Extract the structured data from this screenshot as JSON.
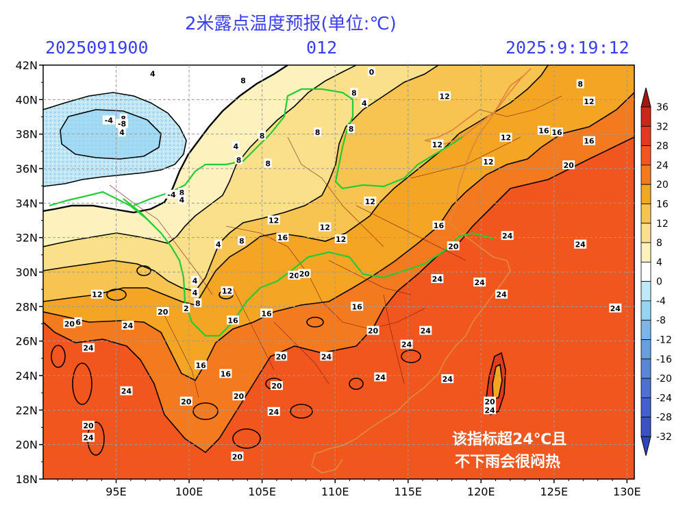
{
  "header": {
    "title": "2米露点温度预报(单位:℃)",
    "run_time": "2025091900",
    "lead_hours": "012",
    "valid_time": "2025:9:19:12"
  },
  "axes": {
    "lat_labels": [
      "42N",
      "40N",
      "38N",
      "36N",
      "34N",
      "32N",
      "30N",
      "28N",
      "26N",
      "24N",
      "22N",
      "20N",
      "18N"
    ],
    "lon_labels": [
      "95E",
      "100E",
      "105E",
      "110E",
      "115E",
      "120E",
      "125E",
      "130E"
    ]
  },
  "colorbar": {
    "ticks": [
      "36",
      "32",
      "28",
      "24",
      "20",
      "16",
      "12",
      "8",
      "4",
      "0",
      "-4",
      "-8",
      "-12",
      "-16",
      "-20",
      "-24",
      "-28",
      "-32"
    ],
    "colors": [
      "#c7281a",
      "#e23a1e",
      "#f0561e",
      "#f47a20",
      "#f5a524",
      "#f7c451",
      "#fbe08c",
      "#fdf1bd",
      "#ffffff",
      "#bfe9f7",
      "#96d4f2",
      "#7ab6ea",
      "#6a9ee2",
      "#5c86da",
      "#4e70d2",
      "#4460cc",
      "#3a52c4"
    ]
  },
  "contour_labels": [
    {
      "text": "4",
      "lon": 97.5,
      "lat": 41.5
    },
    {
      "text": "8",
      "lon": 103.7,
      "lat": 41.1
    },
    {
      "text": "0",
      "lon": 112.5,
      "lat": 41.6
    },
    {
      "text": "8",
      "lon": 111.3,
      "lat": 40.4
    },
    {
      "text": "4",
      "lon": 112.0,
      "lat": 39.8
    },
    {
      "text": "12",
      "lon": 117.5,
      "lat": 40.2
    },
    {
      "text": "8",
      "lon": 126.8,
      "lat": 40.9
    },
    {
      "text": "12",
      "lon": 127.4,
      "lat": 39.9
    },
    {
      "text": "8",
      "lon": 95.5,
      "lat": 38.9
    },
    {
      "text": "-4",
      "lon": 94.5,
      "lat": 38.8
    },
    {
      "text": "-8",
      "lon": 95.4,
      "lat": 38.6
    },
    {
      "text": "4",
      "lon": 95.4,
      "lat": 38.1
    },
    {
      "text": "8",
      "lon": 105.0,
      "lat": 37.9
    },
    {
      "text": "8",
      "lon": 108.8,
      "lat": 38.1
    },
    {
      "text": "8",
      "lon": 111.1,
      "lat": 38.3
    },
    {
      "text": "4",
      "lon": 103.2,
      "lat": 37.3
    },
    {
      "text": "12",
      "lon": 117.0,
      "lat": 37.4
    },
    {
      "text": "12",
      "lon": 121.7,
      "lat": 37.8
    },
    {
      "text": "16",
      "lon": 124.3,
      "lat": 38.2
    },
    {
      "text": "16",
      "lon": 125.2,
      "lat": 38.1
    },
    {
      "text": "16",
      "lon": 127.4,
      "lat": 37.6
    },
    {
      "text": "8",
      "lon": 103.4,
      "lat": 36.5
    },
    {
      "text": "8",
      "lon": 105.4,
      "lat": 36.3
    },
    {
      "text": "12",
      "lon": 120.5,
      "lat": 36.4
    },
    {
      "text": "20",
      "lon": 126.0,
      "lat": 36.2
    },
    {
      "text": "12",
      "lon": 112.4,
      "lat": 34.1
    },
    {
      "text": "8",
      "lon": 99.5,
      "lat": 34.6
    },
    {
      "text": "4",
      "lon": 99.5,
      "lat": 34.2
    },
    {
      "text": "-4",
      "lon": 98.8,
      "lat": 34.5
    },
    {
      "text": "12",
      "lon": 105.8,
      "lat": 33.0
    },
    {
      "text": "12",
      "lon": 109.3,
      "lat": 32.6
    },
    {
      "text": "16",
      "lon": 117.1,
      "lat": 32.7
    },
    {
      "text": "16",
      "lon": 106.4,
      "lat": 32.0
    },
    {
      "text": "12",
      "lon": 110.4,
      "lat": 31.9
    },
    {
      "text": "24",
      "lon": 121.8,
      "lat": 32.1
    },
    {
      "text": "24",
      "lon": 126.8,
      "lat": 31.6
    },
    {
      "text": "20",
      "lon": 118.1,
      "lat": 31.5
    },
    {
      "text": "4",
      "lon": 102.0,
      "lat": 31.6
    },
    {
      "text": "8",
      "lon": 103.6,
      "lat": 31.8
    },
    {
      "text": "20",
      "lon": 107.2,
      "lat": 29.8
    },
    {
      "text": "20",
      "lon": 107.9,
      "lat": 29.9
    },
    {
      "text": "24",
      "lon": 117.0,
      "lat": 29.6
    },
    {
      "text": "24",
      "lon": 119.9,
      "lat": 29.4
    },
    {
      "text": "12",
      "lon": 93.7,
      "lat": 28.7
    },
    {
      "text": "4",
      "lon": 100.4,
      "lat": 29.5
    },
    {
      "text": "4",
      "lon": 100.4,
      "lat": 28.8
    },
    {
      "text": "8",
      "lon": 100.6,
      "lat": 28.2
    },
    {
      "text": "12",
      "lon": 102.6,
      "lat": 28.9
    },
    {
      "text": "20",
      "lon": 98.2,
      "lat": 27.7
    },
    {
      "text": "2",
      "lon": 99.8,
      "lat": 27.9
    },
    {
      "text": "16",
      "lon": 103.0,
      "lat": 27.2
    },
    {
      "text": "16",
      "lon": 105.3,
      "lat": 27.6
    },
    {
      "text": "16",
      "lon": 111.5,
      "lat": 28.0
    },
    {
      "text": "24",
      "lon": 121.4,
      "lat": 28.7
    },
    {
      "text": "24",
      "lon": 129.2,
      "lat": 27.9
    },
    {
      "text": "20",
      "lon": 91.8,
      "lat": 27.0
    },
    {
      "text": "6",
      "lon": 92.4,
      "lat": 27.1
    },
    {
      "text": "24",
      "lon": 95.8,
      "lat": 26.9
    },
    {
      "text": "20",
      "lon": 112.6,
      "lat": 26.6
    },
    {
      "text": "24",
      "lon": 116.2,
      "lat": 26.6
    },
    {
      "text": "24",
      "lon": 93.1,
      "lat": 25.6
    },
    {
      "text": "24",
      "lon": 114.9,
      "lat": 25.8
    },
    {
      "text": "20",
      "lon": 106.3,
      "lat": 25.1
    },
    {
      "text": "24",
      "lon": 109.4,
      "lat": 25.1
    },
    {
      "text": "16",
      "lon": 100.8,
      "lat": 24.6
    },
    {
      "text": "16",
      "lon": 102.5,
      "lat": 24.1
    },
    {
      "text": "24",
      "lon": 113.1,
      "lat": 23.9
    },
    {
      "text": "24",
      "lon": 117.7,
      "lat": 23.8
    },
    {
      "text": "20",
      "lon": 106.0,
      "lat": 23.4
    },
    {
      "text": "24",
      "lon": 95.7,
      "lat": 23.1
    },
    {
      "text": "20",
      "lon": 103.4,
      "lat": 22.8
    },
    {
      "text": "20",
      "lon": 99.8,
      "lat": 22.5
    },
    {
      "text": "24",
      "lon": 105.8,
      "lat": 21.9
    },
    {
      "text": "20",
      "lon": 120.6,
      "lat": 22.5
    },
    {
      "text": "24",
      "lon": 120.6,
      "lat": 22.0
    },
    {
      "text": "20",
      "lon": 93.1,
      "lat": 21.1
    },
    {
      "text": "24",
      "lon": 93.1,
      "lat": 20.4
    },
    {
      "text": "20",
      "lon": 103.3,
      "lat": 19.3
    }
  ],
  "annotation": {
    "line1": "该指标超24℃且",
    "line2": "不下雨会很闷热"
  }
}
